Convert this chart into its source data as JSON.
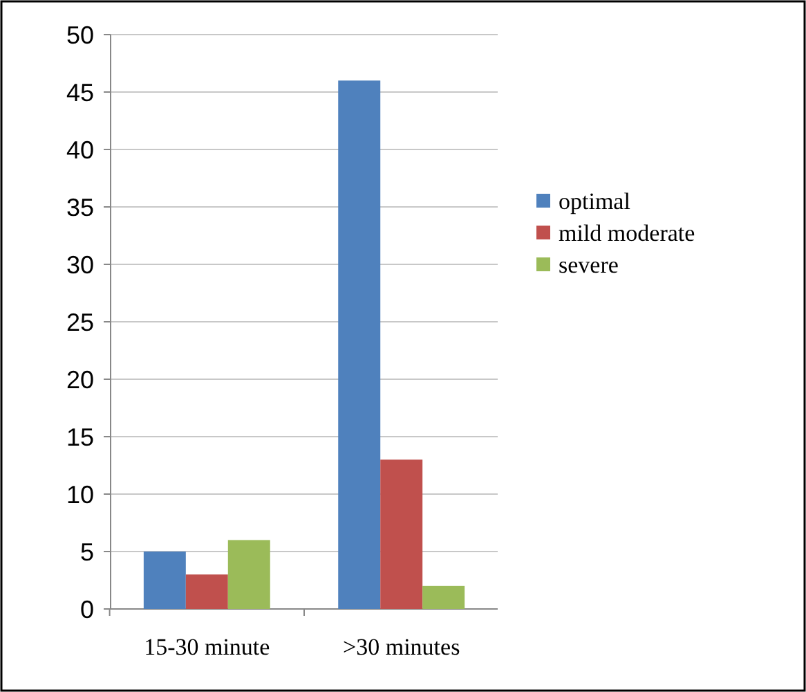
{
  "chart_data": {
    "type": "bar",
    "categories": [
      "15-30 minute",
      ">30 minutes"
    ],
    "series": [
      {
        "name": "optimal",
        "color": "#4f81bd",
        "values": [
          5,
          46
        ]
      },
      {
        "name": "mild moderate",
        "color": "#c0504d",
        "values": [
          3,
          13
        ]
      },
      {
        "name": "severe",
        "color": "#9bbb59",
        "values": [
          6,
          2
        ]
      }
    ],
    "ylim": [
      0,
      50
    ],
    "yticks": [
      0,
      5,
      10,
      15,
      20,
      25,
      30,
      35,
      40,
      45,
      50
    ],
    "grid": "y",
    "legend": "right"
  }
}
